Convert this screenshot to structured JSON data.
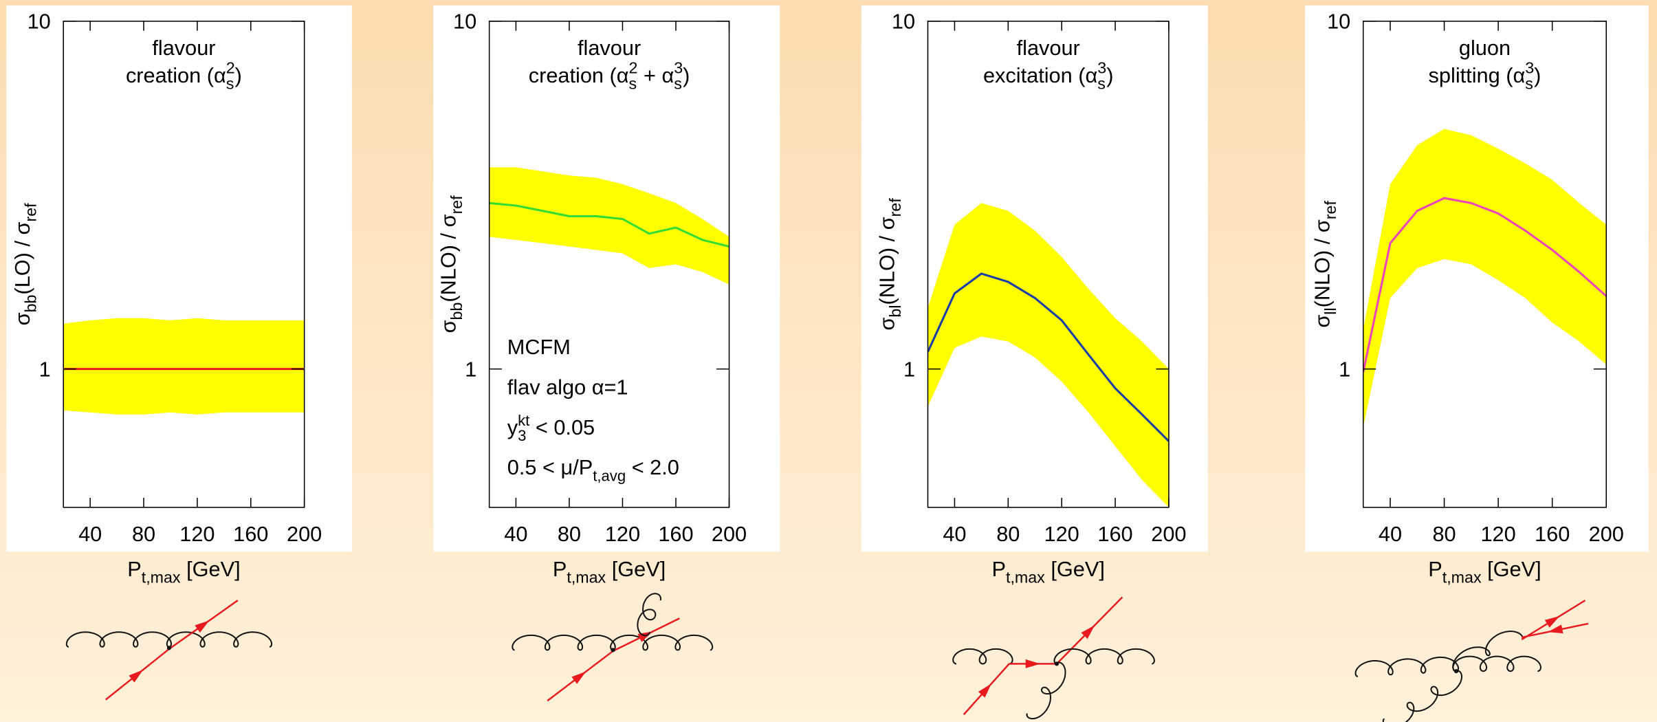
{
  "chart_data": [
    {
      "type": "line",
      "title": [
        [
          "flavour"
        ],
        [
          "creation (α",
          {
            "sub": "s",
            "sup": "2"
          },
          ")"
        ]
      ],
      "x_label": [
        "P",
        {
          "sub": "t,max"
        },
        " [GeV]"
      ],
      "y_label": [
        "σ",
        {
          "sub": "bb"
        },
        "(LO) / σ",
        {
          "sub": "ref"
        }
      ],
      "x": [
        20,
        40,
        60,
        80,
        100,
        120,
        140,
        160,
        180,
        200
      ],
      "series": [
        {
          "color": "#e8191f",
          "values": [
            1,
            1,
            1,
            1,
            1,
            1,
            1,
            1,
            1,
            1
          ],
          "upper": [
            1.35,
            1.38,
            1.4,
            1.4,
            1.38,
            1.4,
            1.38,
            1.38,
            1.38,
            1.38
          ],
          "lower": [
            0.76,
            0.75,
            0.74,
            0.74,
            0.75,
            0.74,
            0.75,
            0.75,
            0.75,
            0.75
          ]
        }
      ],
      "band_color": "#ffff00",
      "log_y": true,
      "xlim": [
        20,
        200
      ],
      "ylim": [
        0.4,
        10
      ],
      "xticks": [
        40,
        80,
        120,
        160,
        200
      ],
      "yticks": [
        1,
        10
      ]
    },
    {
      "type": "line",
      "title": [
        [
          "flavour"
        ],
        [
          "creation (α",
          {
            "sub": "s",
            "sup": "2"
          },
          " + α",
          {
            "sub": "s",
            "sup": "3"
          },
          ")"
        ]
      ],
      "x_label": [
        "P",
        {
          "sub": "t,max"
        },
        " [GeV]"
      ],
      "y_label": [
        "σ",
        {
          "sub": "bb"
        },
        "(NLO) / σ",
        {
          "sub": "ref"
        }
      ],
      "annotations": [
        [
          "MCFM"
        ],
        [
          "flav algo α=1"
        ],
        [
          "y",
          {
            "sub": "3",
            "sup": "kt"
          },
          " < 0.05"
        ],
        [
          "0.5 < μ/P",
          {
            "sub": "t,avg"
          },
          " < 2.0"
        ]
      ],
      "x": [
        20,
        40,
        60,
        80,
        100,
        120,
        140,
        160,
        180,
        200
      ],
      "series": [
        {
          "color": "#33dd33",
          "values": [
            3.0,
            2.95,
            2.85,
            2.75,
            2.75,
            2.7,
            2.45,
            2.55,
            2.35,
            2.25
          ],
          "upper": [
            3.8,
            3.8,
            3.7,
            3.6,
            3.55,
            3.4,
            3.2,
            3.0,
            2.7,
            2.4
          ],
          "lower": [
            2.4,
            2.35,
            2.3,
            2.25,
            2.2,
            2.15,
            1.95,
            2.0,
            1.9,
            1.75
          ]
        }
      ],
      "band_color": "#ffff00",
      "log_y": true,
      "xlim": [
        20,
        200
      ],
      "ylim": [
        0.4,
        10
      ],
      "xticks": [
        40,
        80,
        120,
        160,
        200
      ],
      "yticks": [
        1,
        10
      ]
    },
    {
      "type": "line",
      "title": [
        [
          "flavour"
        ],
        [
          "excitation (α",
          {
            "sub": "s",
            "sup": "3"
          },
          ")"
        ]
      ],
      "x_label": [
        "P",
        {
          "sub": "t,max"
        },
        " [GeV]"
      ],
      "y_label": [
        "σ",
        {
          "sub": "bl"
        },
        "(NLO) / σ",
        {
          "sub": "ref"
        }
      ],
      "x": [
        20,
        40,
        60,
        80,
        100,
        120,
        140,
        160,
        180,
        200
      ],
      "series": [
        {
          "color": "#1a3ea8",
          "values": [
            1.12,
            1.65,
            1.88,
            1.78,
            1.6,
            1.38,
            1.1,
            0.88,
            0.74,
            0.62
          ],
          "upper": [
            1.5,
            2.6,
            3.0,
            2.85,
            2.5,
            2.1,
            1.7,
            1.4,
            1.2,
            1.0
          ],
          "lower": [
            0.78,
            1.15,
            1.24,
            1.2,
            1.08,
            0.92,
            0.75,
            0.6,
            0.48,
            0.4
          ]
        }
      ],
      "band_color": "#ffff00",
      "log_y": true,
      "xlim": [
        20,
        200
      ],
      "ylim": [
        0.4,
        10
      ],
      "xticks": [
        40,
        80,
        120,
        160,
        200
      ],
      "yticks": [
        1,
        10
      ]
    },
    {
      "type": "line",
      "title": [
        [
          "gluon"
        ],
        [
          "splitting (α",
          {
            "sub": "s",
            "sup": "3"
          },
          ")"
        ]
      ],
      "x_label": [
        "P",
        {
          "sub": "t,max"
        },
        " [GeV]"
      ],
      "y_label": [
        "σ",
        {
          "sub": "ll"
        },
        "(NLO) / σ",
        {
          "sub": "ref"
        }
      ],
      "x": [
        20,
        40,
        60,
        80,
        100,
        120,
        140,
        160,
        180,
        200
      ],
      "series": [
        {
          "color": "#ee44bb",
          "values": [
            0.98,
            2.3,
            2.85,
            3.1,
            3.0,
            2.8,
            2.5,
            2.2,
            1.9,
            1.62
          ],
          "upper": [
            1.3,
            3.4,
            4.4,
            4.9,
            4.7,
            4.3,
            3.9,
            3.5,
            3.0,
            2.6
          ],
          "lower": [
            0.68,
            1.6,
            1.95,
            2.07,
            2.0,
            1.8,
            1.6,
            1.36,
            1.2,
            1.03
          ]
        }
      ],
      "band_color": "#ffff00",
      "log_y": true,
      "xlim": [
        20,
        200
      ],
      "ylim": [
        0.4,
        10
      ],
      "xticks": [
        40,
        80,
        120,
        160,
        200
      ],
      "yticks": [
        1,
        10
      ]
    }
  ]
}
